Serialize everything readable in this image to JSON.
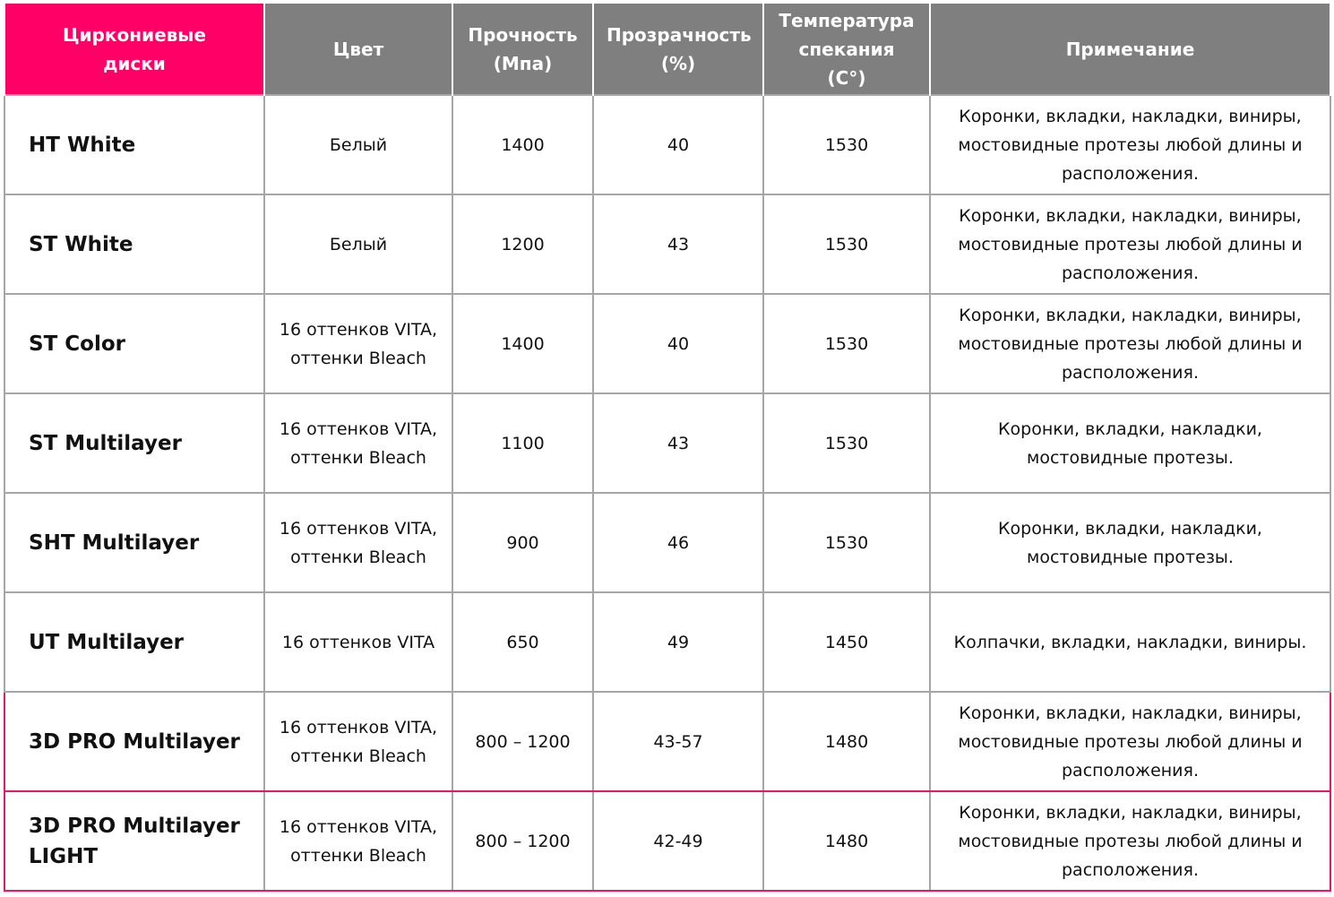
{
  "table": {
    "columns": [
      "Циркониевые диски",
      "Цвет",
      "Прочность (Мпа)",
      "Прозрачность (%)",
      "Температура спекания (C°)",
      "Примечание"
    ],
    "rows": [
      [
        "HT White",
        "Белый",
        "1400",
        "40",
        "1530",
        "Коронки, вкладки, накладки, виниры, мостовидные протезы любой длины и расположения."
      ],
      [
        "ST White",
        "Белый",
        "1200",
        "43",
        "1530",
        "Коронки, вкладки, накладки, виниры, мостовидные протезы любой длины и расположения."
      ],
      [
        "ST Color",
        "16 оттенков VITA, оттенки Bleach",
        "1400",
        "40",
        "1530",
        "Коронки, вкладки, накладки, виниры, мостовидные протезы любой длины и расположения."
      ],
      [
        "ST Multilayer",
        "16 оттенков VITA, оттенки Bleach",
        "1100",
        "43",
        "1530",
        "Коронки, вкладки, накладки, мостовидные протезы."
      ],
      [
        "SHT Multilayer",
        "16 оттенков VITA, оттенки Bleach",
        "900",
        "46",
        "1530",
        "Коронки, вкладки, накладки, мостовидные протезы."
      ],
      [
        "UT Multilayer",
        "16 оттенков VITA",
        "650",
        "49",
        "1450",
        "Колпачки, вкладки, накладки, виниры."
      ],
      [
        "3D PRO Multilayer",
        "16 оттенков VITA, оттенки Bleach",
        "800 – 1200",
        "43-57",
        "1480",
        "Коронки, вкладки, накладки, виниры, мостовидные протезы любой длины и расположения."
      ],
      [
        "3D PRO Multilayer LIGHT",
        "16 оттенков VITA, оттенки Bleach",
        "800 – 1200",
        "42-49",
        "1480",
        "Коронки, вкладки, накладки, виниры, мостовидные протезы любой длины и расположения."
      ]
    ]
  }
}
